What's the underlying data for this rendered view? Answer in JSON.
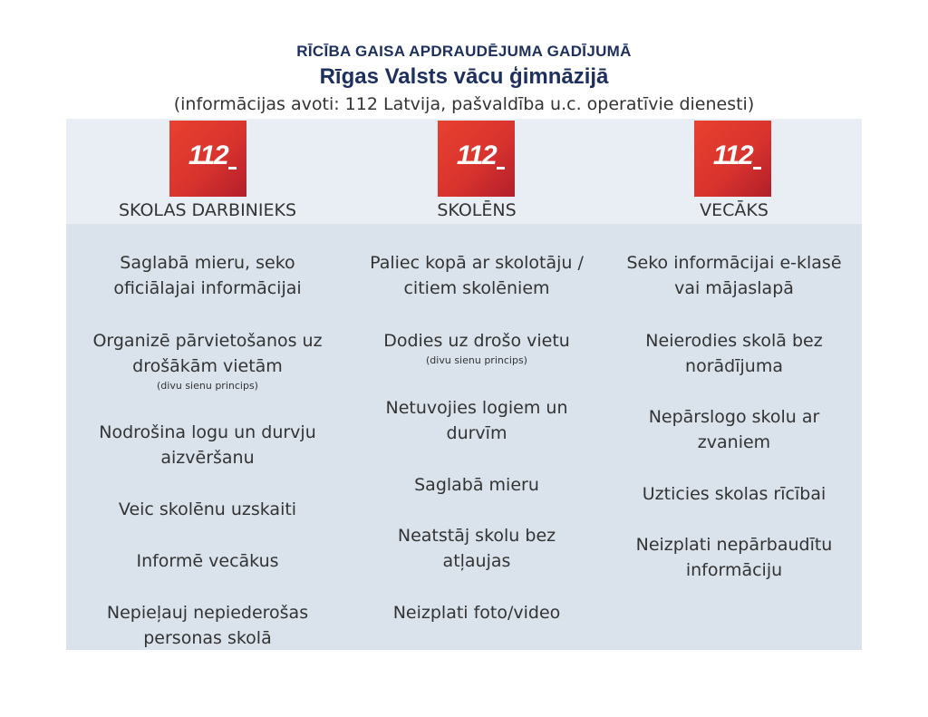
{
  "header": {
    "kicker": "RĪCĪBA GAISA APDRAUDĒJUMA GADĪJUMĀ",
    "school": "Rīgas Valsts vācu ģimnāzijā",
    "sources": "(informācijas avoti: 112 Latvija, pašvaldība u.c. operatīvie dienesti)"
  },
  "logo_text": "112",
  "colors": {
    "logo_red": "#d9332e",
    "title_navy": "#1c2f5f",
    "panel_top": "#e9eef4",
    "panel_body": "#dae3ec"
  },
  "columns": [
    {
      "role": "SKOLAS DARBINIEKS",
      "items": [
        {
          "line1": "Saglabā mieru, seko",
          "line2": "oficiālajai informācijai",
          "note": ""
        },
        {
          "line1": "Organizē pārvietošanos uz",
          "line2": "drošākām vietām",
          "note": "(divu sienu princips)"
        },
        {
          "line1": "Nodrošina logu un durvju",
          "line2": "aizvēršanu",
          "note": ""
        },
        {
          "line1": "Veic skolēnu uzskaiti",
          "line2": "",
          "note": ""
        },
        {
          "line1": "Informē vecākus",
          "line2": "",
          "note": ""
        },
        {
          "line1": "Nepieļauj nepiederošas",
          "line2": "personas skolā",
          "note": ""
        }
      ]
    },
    {
      "role": "SKOLĒNS",
      "items": [
        {
          "line1": "Paliec kopā ar skolotāju /",
          "line2": "citiem skolēniem",
          "note": ""
        },
        {
          "line1": "Dodies uz drošo vietu",
          "line2": "",
          "note": "(divu sienu princips)"
        },
        {
          "line1": "Netuvojies logiem un",
          "line2": "durvīm",
          "note": ""
        },
        {
          "line1": "Saglabā mieru",
          "line2": "",
          "note": ""
        },
        {
          "line1": "Neatstāj skolu bez",
          "line2": "atļaujas",
          "note": ""
        },
        {
          "line1": "Neizplati foto/video",
          "line2": "",
          "note": ""
        }
      ]
    },
    {
      "role": "VECĀKS",
      "items": [
        {
          "line1": "Seko informācijai e-klasē",
          "line2": "vai mājaslapā",
          "note": ""
        },
        {
          "line1": "Neierodies skolā bez",
          "line2": "norādījuma",
          "note": ""
        },
        {
          "line1": "Nepārslogo skolu ar",
          "line2": "zvaniem",
          "note": ""
        },
        {
          "line1": "Uzticies skolas rīcībai",
          "line2": "",
          "note": ""
        },
        {
          "line1": "Neizplati nepārbaudītu",
          "line2": "informāciju",
          "note": ""
        }
      ]
    }
  ]
}
